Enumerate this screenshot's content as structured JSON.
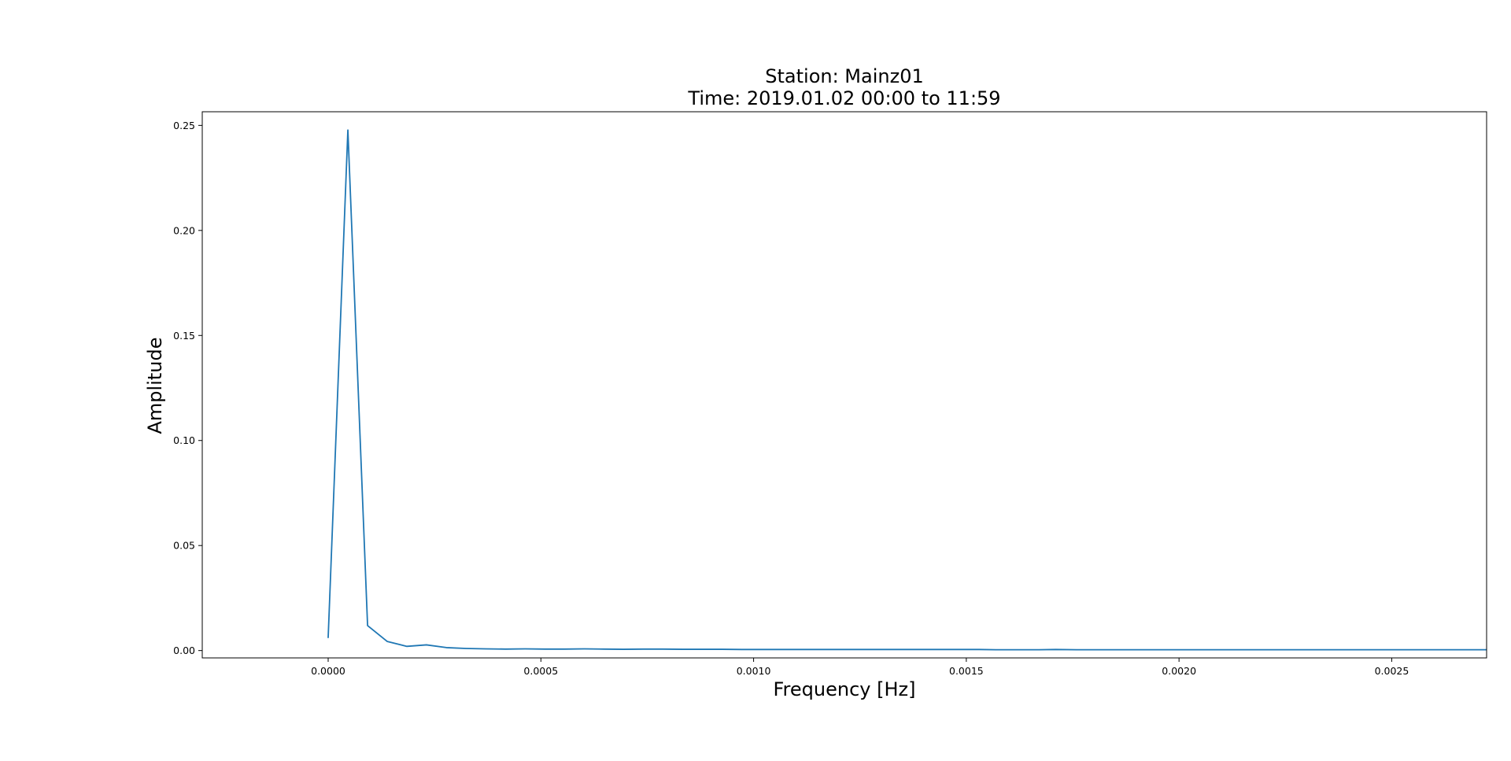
{
  "chart_data": {
    "type": "line",
    "title": [
      "Station: Mainz01",
      "Time: 2019.01.02 00:00 to 11:59"
    ],
    "xlabel": "Frequency [Hz]",
    "ylabel": "Amplitude",
    "xlim": [
      -0.000296,
      0.002723
    ],
    "ylim": [
      -0.0035,
      0.2565
    ],
    "x_ticks": [
      0.0,
      0.0005,
      0.001,
      0.0015,
      0.002,
      0.0025
    ],
    "x_tick_labels": [
      "0.0000",
      "0.0005",
      "0.0010",
      "0.0015",
      "0.0020",
      "0.0025"
    ],
    "y_ticks": [
      0.0,
      0.05,
      0.1,
      0.15,
      0.2,
      0.25
    ],
    "y_tick_labels": [
      "0.00",
      "0.05",
      "0.10",
      "0.15",
      "0.20",
      "0.25"
    ],
    "grid": false,
    "series": [
      {
        "name": "Mainz01",
        "color": "#1f77b4",
        "x": [
          0.0,
          4.63e-05,
          9.26e-05,
          0.000139,
          0.000185,
          0.000231,
          0.000278,
          0.000324,
          0.00037,
          0.000417,
          0.000463,
          0.000509,
          0.000556,
          0.000602,
          0.000648,
          0.000694,
          0.000741,
          0.000787,
          0.000833,
          0.00088,
          0.000926,
          0.000972,
          0.00102,
          0.00106,
          0.00111,
          0.00116,
          0.0012,
          0.00125,
          0.0013,
          0.00134,
          0.00139,
          0.00144,
          0.00148,
          0.00153,
          0.00157,
          0.00162,
          0.00167,
          0.00171,
          0.00176,
          0.00181,
          0.00185,
          0.0019,
          0.00194,
          0.00199,
          0.00204,
          0.00208,
          0.00213,
          0.00218,
          0.00222,
          0.00227,
          0.00231,
          0.00236,
          0.00241,
          0.00245,
          0.0025,
          0.00255,
          0.00259,
          0.00264,
          0.00268,
          0.00273
        ],
        "values": [
          0.0063,
          0.2478,
          0.0119,
          0.0043,
          0.002,
          0.0027,
          0.0014,
          0.001,
          0.0008,
          0.0007,
          0.0008,
          0.0007,
          0.0007,
          0.0008,
          0.0007,
          0.0006,
          0.0007,
          0.0007,
          0.0006,
          0.0006,
          0.0006,
          0.0005,
          0.0005,
          0.0005,
          0.0005,
          0.0005,
          0.0005,
          0.0005,
          0.0005,
          0.0005,
          0.0005,
          0.0005,
          0.0005,
          0.0005,
          0.0004,
          0.0004,
          0.0004,
          0.0005,
          0.0004,
          0.0004,
          0.0004,
          0.0004,
          0.0004,
          0.0004,
          0.0004,
          0.0004,
          0.0004,
          0.0004,
          0.0004,
          0.0004,
          0.0004,
          0.0004,
          0.0004,
          0.0004,
          0.0004,
          0.0004,
          0.0004,
          0.0004,
          0.0004,
          0.0004
        ]
      }
    ]
  }
}
